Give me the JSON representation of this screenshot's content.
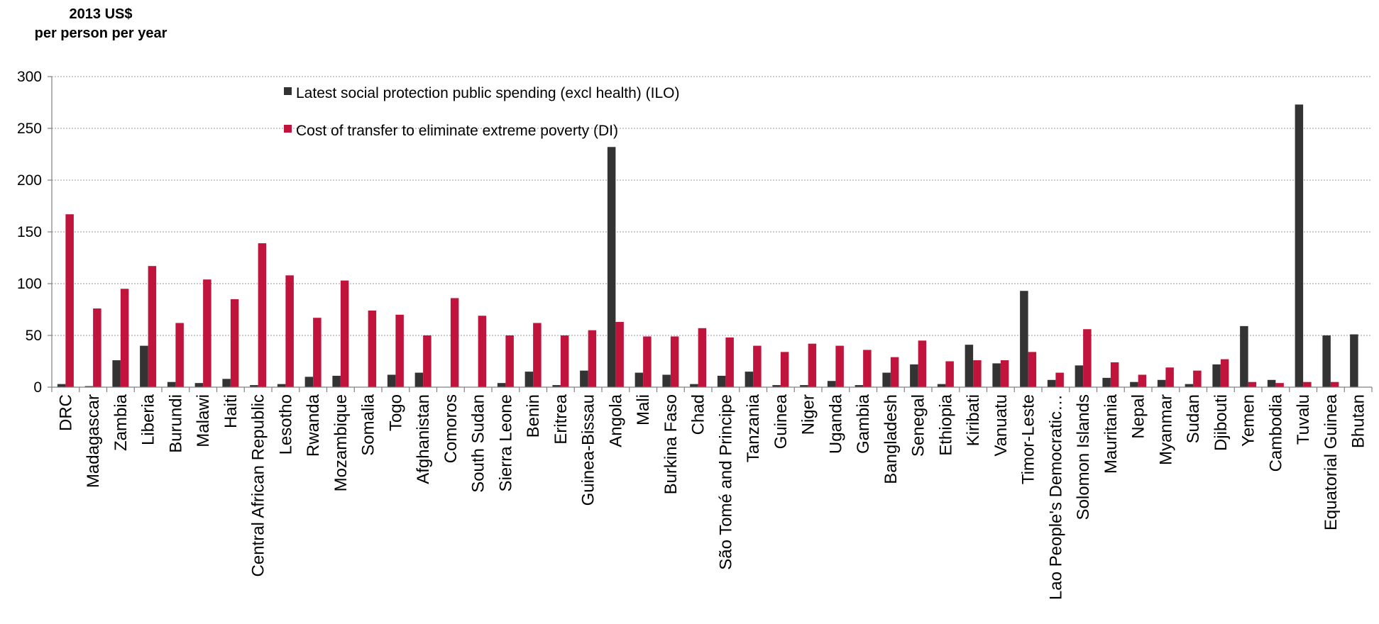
{
  "chart_data": {
    "type": "bar",
    "unit_label_lines": [
      "2013 US$",
      "per person per year"
    ],
    "ylim": [
      0,
      300
    ],
    "yticks": [
      0,
      50,
      100,
      150,
      200,
      250,
      300
    ],
    "grid": true,
    "legend_position": "top-left",
    "categories": [
      "DRC",
      "Madagascar",
      "Zambia",
      "Liberia",
      "Burundi",
      "Malawi",
      "Haiti",
      "Central African Republic",
      "Lesotho",
      "Rwanda",
      "Mozambique",
      "Somalia",
      "Togo",
      "Afghanistan",
      "Comoros",
      "South Sudan",
      "Sierra Leone",
      "Benin",
      "Eritrea",
      "Guinea-Bissau",
      "Angola",
      "Mali",
      "Burkina Faso",
      "Chad",
      "São Tomé and Principe",
      "Tanzania",
      "Guinea",
      "Niger",
      "Uganda",
      "Gambia",
      "Bangladesh",
      "Senegal",
      "Ethiopia",
      "Kiribati",
      "Vanuatu",
      "Timor-Leste",
      "Lao People's Democratic…",
      "Solomon Islands",
      "Mauritania",
      "Nepal",
      "Myanmar",
      "Sudan",
      "Djibouti",
      "Yemen",
      "Cambodia",
      "Tuvalu",
      "Equatorial Guinea",
      "Bhutan"
    ],
    "series": [
      {
        "name": "Latest social protection public spending (excl health) (ILO)",
        "color": "#333333",
        "values": [
          3,
          1,
          26,
          40,
          5,
          4,
          8,
          2,
          3,
          10,
          11,
          0,
          12,
          14,
          0,
          0,
          4,
          15,
          2,
          16,
          232,
          14,
          12,
          3,
          11,
          15,
          2,
          2,
          6,
          2,
          14,
          22,
          3,
          41,
          23,
          93,
          7,
          21,
          9,
          5,
          7,
          3,
          22,
          59,
          7,
          273,
          50,
          51
        ]
      },
      {
        "name": "Cost of transfer to eliminate extreme poverty (DI)",
        "color": "#c0143c",
        "values": [
          167,
          76,
          95,
          117,
          62,
          104,
          85,
          139,
          108,
          67,
          103,
          74,
          70,
          50,
          86,
          69,
          50,
          62,
          50,
          55,
          63,
          49,
          49,
          57,
          48,
          40,
          34,
          42,
          40,
          36,
          29,
          45,
          25,
          26,
          26,
          34,
          14,
          56,
          24,
          12,
          19,
          16,
          27,
          5,
          4,
          5,
          5,
          0
        ]
      }
    ]
  }
}
